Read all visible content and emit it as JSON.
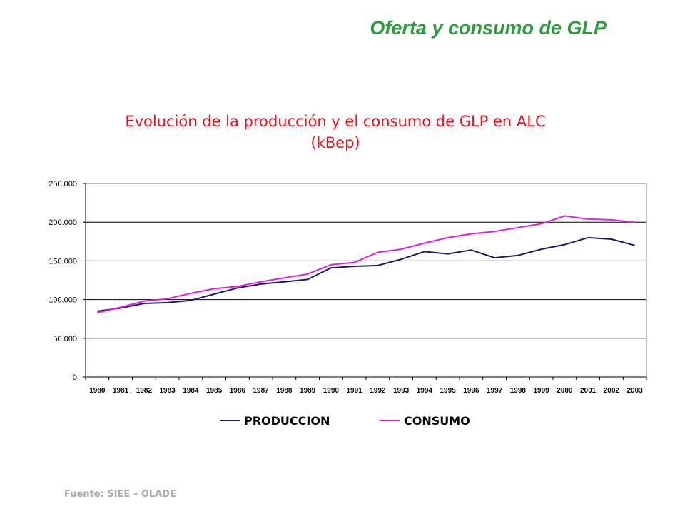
{
  "slide": {
    "title": "Oferta y consumo de GLP",
    "source": "Fuente: SIEE – OLADE"
  },
  "colors": {
    "title_green": "#2e9b3c",
    "chart_title_red": "#e8141c",
    "produccion": "#1a1a6e",
    "consumo": "#e020e0",
    "source_gray": "#a9a9a9"
  },
  "chart_data": {
    "type": "line",
    "title_line1": "Evolución de la producción y el consumo de GLP en ALC",
    "title_line2": "(kBep)",
    "xlabel": "",
    "ylabel": "",
    "categories": [
      "1980",
      "1981",
      "1982",
      "1983",
      "1984",
      "1985",
      "1986",
      "1987",
      "1988",
      "1989",
      "1990",
      "1991",
      "1992",
      "1993",
      "1994",
      "1995",
      "1996",
      "1997",
      "1998",
      "1999",
      "2000",
      "2001",
      "2002",
      "2003"
    ],
    "ylim": [
      0,
      250000
    ],
    "yticks": [
      0,
      50000,
      100000,
      150000,
      200000,
      250000
    ],
    "ytick_labels": [
      "0",
      "50.000",
      "100.000",
      "150.000",
      "200.000",
      "250.000"
    ],
    "grid": true,
    "legend_position": "bottom",
    "series": [
      {
        "name": "PRODUCCION",
        "color": "#1a1a6e",
        "values": [
          85000,
          89000,
          95000,
          96000,
          99000,
          107000,
          115000,
          120000,
          123000,
          126000,
          141000,
          143000,
          144000,
          152000,
          162000,
          159000,
          164000,
          154000,
          157000,
          165000,
          171000,
          180000,
          178000,
          170000
        ]
      },
      {
        "name": "CONSUMO",
        "color": "#e020e0",
        "values": [
          83000,
          90000,
          98000,
          101000,
          108000,
          114000,
          117000,
          123000,
          128000,
          133000,
          145000,
          148000,
          161000,
          165000,
          173000,
          180000,
          185000,
          188000,
          193000,
          198000,
          208000,
          204000,
          203000,
          200000
        ]
      }
    ]
  }
}
